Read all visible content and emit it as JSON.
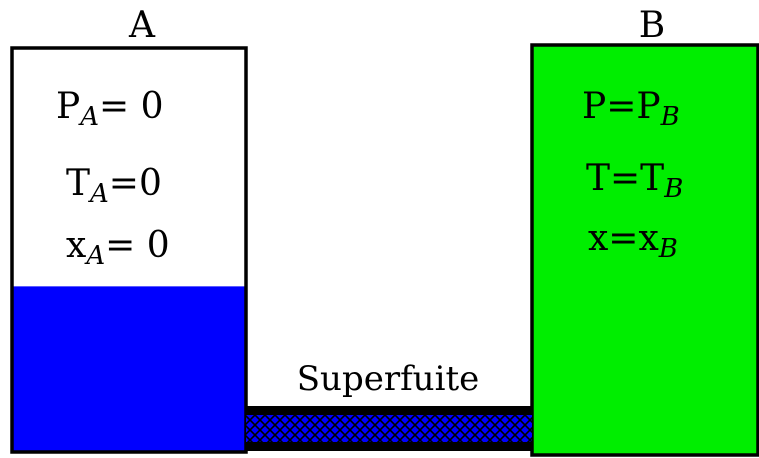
{
  "tank_a": {
    "label": "A",
    "pressure": {
      "base": "P",
      "sub": "A",
      "rest": "= 0"
    },
    "temperature": {
      "base": "T",
      "sub": "A",
      "rest": "=0"
    },
    "fraction": {
      "base": "x",
      "sub": "A",
      "rest": "= 0"
    },
    "fill_color": "#0000ff",
    "liquid_level": 0.41
  },
  "tank_b": {
    "label": "B",
    "pressure": {
      "base": "P=P",
      "sub": "B"
    },
    "temperature": {
      "base": "T=T",
      "sub": "B"
    },
    "fraction": {
      "base": "x=x",
      "sub": "B"
    },
    "fill_color": "#00ee00"
  },
  "channel": {
    "label": "Superfuite",
    "hatch_color": "#0000ff"
  }
}
